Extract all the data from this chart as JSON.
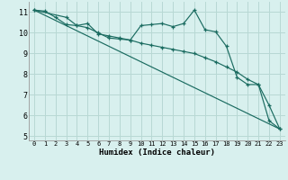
{
  "xlabel": "Humidex (Indice chaleur)",
  "background_color": "#d8f0ee",
  "grid_color": "#b8d8d4",
  "line_color": "#1a6b60",
  "xlim": [
    -0.5,
    23.5
  ],
  "ylim": [
    4.8,
    11.5
  ],
  "xticks": [
    0,
    1,
    2,
    3,
    4,
    5,
    6,
    7,
    8,
    9,
    10,
    11,
    12,
    13,
    14,
    15,
    16,
    17,
    18,
    19,
    20,
    21,
    22,
    23
  ],
  "yticks": [
    5,
    6,
    7,
    8,
    9,
    10,
    11
  ],
  "line1_x": [
    0,
    1,
    2,
    3,
    4,
    5,
    6,
    7,
    8,
    9,
    10,
    11,
    12,
    13,
    14,
    15,
    16,
    17,
    18,
    19,
    20,
    21,
    22,
    23
  ],
  "line1_y": [
    11.1,
    11.05,
    10.75,
    10.4,
    10.35,
    10.25,
    10.0,
    9.75,
    9.7,
    9.65,
    10.35,
    10.4,
    10.45,
    10.3,
    10.45,
    11.1,
    10.15,
    10.05,
    9.35,
    7.85,
    7.5,
    7.5,
    5.75,
    5.35
  ],
  "line2_x": [
    0,
    3,
    4,
    5,
    6,
    7,
    8,
    9,
    10,
    11,
    12,
    13,
    14,
    15,
    16,
    17,
    18,
    19,
    20,
    21,
    22,
    23
  ],
  "line2_y": [
    11.1,
    10.75,
    10.35,
    10.45,
    9.95,
    9.85,
    9.75,
    9.65,
    9.5,
    9.4,
    9.3,
    9.2,
    9.1,
    9.0,
    8.8,
    8.6,
    8.35,
    8.1,
    7.75,
    7.5,
    6.5,
    5.35
  ],
  "line3_x": [
    0,
    23
  ],
  "line3_y": [
    11.1,
    5.35
  ]
}
